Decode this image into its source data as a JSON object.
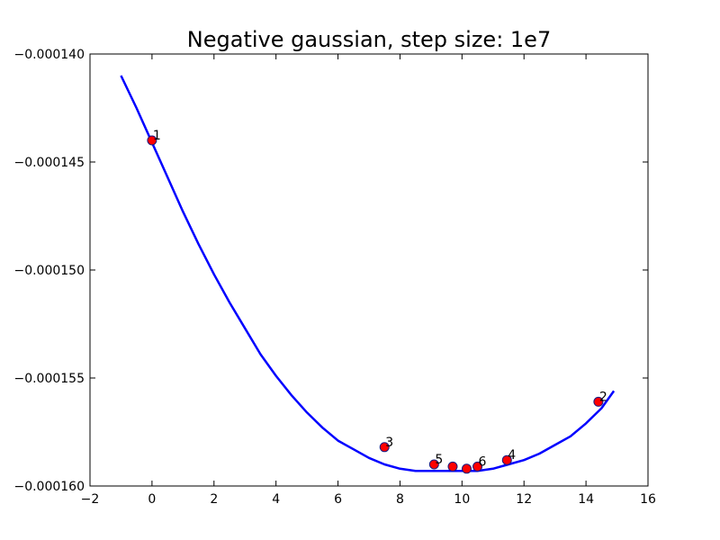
{
  "chart_data": {
    "type": "line",
    "title": "Negative gaussian, step size: 1e7",
    "xlabel": "",
    "ylabel": "",
    "xlim": [
      -2,
      16
    ],
    "ylim": [
      -0.00016,
      -0.00014
    ],
    "xticks": [
      -2,
      0,
      2,
      4,
      6,
      8,
      10,
      12,
      14,
      16
    ],
    "xtick_labels": [
      "−2",
      "0",
      "2",
      "4",
      "6",
      "8",
      "10",
      "12",
      "14",
      "16"
    ],
    "yticks": [
      -0.00016,
      -0.000155,
      -0.00015,
      -0.000145,
      -0.00014
    ],
    "ytick_labels": [
      "−0.000160",
      "−0.000155",
      "−0.000150",
      "−0.000145",
      "−0.000140"
    ],
    "grid": false,
    "curve": {
      "color": "#0000ff",
      "x": [
        -1.0,
        -0.5,
        0.0,
        0.5,
        1.0,
        1.5,
        2.0,
        2.5,
        3.0,
        3.5,
        4.0,
        4.5,
        5.0,
        5.5,
        6.0,
        6.5,
        7.0,
        7.5,
        8.0,
        8.5,
        9.0,
        9.5,
        10.0,
        10.5,
        11.0,
        11.5,
        12.0,
        12.5,
        13.0,
        13.5,
        14.0,
        14.5,
        14.9
      ],
      "y": [
        -0.000141,
        -0.0001425,
        -0.0001441,
        -0.0001457,
        -0.0001473,
        -0.0001488,
        -0.0001502,
        -0.0001515,
        -0.0001527,
        -0.0001539,
        -0.0001549,
        -0.0001558,
        -0.0001566,
        -0.0001573,
        -0.0001579,
        -0.0001583,
        -0.0001587,
        -0.000159,
        -0.0001592,
        -0.0001593,
        -0.0001593,
        -0.0001593,
        -0.0001593,
        -0.0001593,
        -0.0001592,
        -0.000159,
        -0.0001588,
        -0.0001585,
        -0.0001581,
        -0.0001577,
        -0.0001571,
        -0.0001564,
        -0.0001556
      ]
    },
    "points": {
      "color": "#ff0000",
      "edge_color": "#1a1a80",
      "x": [
        0.0,
        14.4,
        7.5,
        11.45,
        9.1,
        10.5,
        9.7,
        10.15
      ],
      "y": [
        -0.000144,
        -0.0001561,
        -0.0001582,
        -0.0001588,
        -0.000159,
        -0.0001591,
        -0.0001591,
        -0.0001592
      ]
    },
    "point_labels": [
      {
        "text": "1",
        "x": 0.0,
        "y": -0.000144
      },
      {
        "text": "2",
        "x": 14.4,
        "y": -0.0001561
      },
      {
        "text": "3",
        "x": 7.5,
        "y": -0.0001582
      },
      {
        "text": "4",
        "x": 11.45,
        "y": -0.0001588
      },
      {
        "text": "5",
        "x": 9.1,
        "y": -0.000159
      },
      {
        "text": "6",
        "x": 10.5,
        "y": -0.0001591
      }
    ]
  }
}
